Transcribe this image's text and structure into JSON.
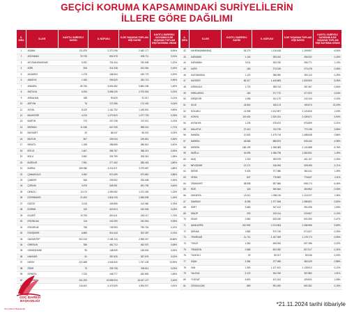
{
  "title": {
    "line1": "GEÇİCİ KORUMA KAPSAMINDAKİ SURİYELİLERİN",
    "line2": "İLLERE GÖRE DAĞILIMI"
  },
  "headers": {
    "no": "S. SIRA",
    "il": "İLLER",
    "kayitli": "KAYITLI SURİYELİ SAYISI",
    "nufus": "İL NÜFUSU",
    "toplam": "İLDE YAŞAYAN TOPLAM KİŞİ SAYISI",
    "oran": "KAYITLI SURİYELİ SAYISININ İLDE YAŞAYAN TOPLAM KİŞİ SAYISINA ORANI"
  },
  "left_rows": [
    [
      "1",
      "ADANA",
      "211.879",
      "2.270.298",
      "2.482.177",
      "8,54%"
    ],
    [
      "2",
      "ADIYAMAN",
      "20.733",
      "604.978",
      "625.711",
      "3,31%"
    ],
    [
      "3",
      "AFYONKARAHİSAR",
      "9.291",
      "751.344",
      "760.635",
      "1,22%"
    ],
    [
      "4",
      "AĞRI",
      "816",
      "511.238",
      "512.054",
      "0,16%"
    ],
    [
      "5",
      "AKSARAY",
      "1.275",
      "438.504",
      "439.779",
      "0,29%"
    ],
    [
      "6",
      "AMASYA",
      "1.184",
      "339.529",
      "340.713",
      "0,35%"
    ],
    [
      "7",
      "ANKARA",
      "80.754",
      "5.803.482",
      "5.884.236",
      "1,46%"
    ],
    [
      "8",
      "ANTALYA",
      "6.294",
      "2.696.249",
      "2.702.543",
      "0,23%"
    ],
    [
      "9",
      "ARDAHAN",
      "188",
      "90.829",
      "91.017",
      "0,21%"
    ],
    [
      "10",
      "ARTVİN",
      "76",
      "172.356",
      "172.432",
      "0,04%"
    ],
    [
      "11",
      "AYDIN",
      "8.129",
      "1.161.702",
      "1.169.831",
      "0,69%"
    ],
    [
      "12",
      "BALIKESİR",
      "4.210",
      "1.273.519",
      "1.277.729",
      "0,33%"
    ],
    [
      "13",
      "BARTIN",
      "273",
      "207.238",
      "207.511",
      "0,13%"
    ],
    [
      "14",
      "BATMAN",
      "11.036",
      "647.205",
      "658.241",
      "1,71%"
    ],
    [
      "15",
      "BAYBURT",
      "29",
      "86.047",
      "86.076",
      "0,03%"
    ],
    [
      "16",
      "BİLECİK",
      "807",
      "226.034",
      "226.841",
      "0,36%"
    ],
    [
      "17",
      "BİNGÖL",
      "1.158",
      "285.655",
      "286.813",
      "0,40%"
    ],
    [
      "18",
      "BİTLİS",
      "1.607",
      "356.767",
      "358.374",
      "0,45%"
    ],
    [
      "19",
      "BOLU",
      "3.552",
      "324.789",
      "328.341",
      "1,08%"
    ],
    [
      "20",
      "BURDUR",
      "7.991",
      "277.452",
      "285.443",
      "2,80%"
    ],
    [
      "21",
      "BURSA",
      "165.086",
      "3.214.571",
      "3.379.657",
      "4,88%"
    ],
    [
      "22",
      "ÇANAKKALE",
      "3.352",
      "570.499",
      "573.851",
      "0,58%"
    ],
    [
      "23",
      "ÇANKIRI",
      "546",
      "205.502",
      "206.048",
      "0,26%"
    ],
    [
      "24",
      "ÇORUM",
      "3.379",
      "528.351",
      "531.730",
      "0,64%"
    ],
    [
      "25",
      "DENİZLİ",
      "13.170",
      "1.059.082",
      "1.072.252",
      "1,23%"
    ],
    [
      "26",
      "DİYARBAKIR",
      "21.402",
      "1.818.133",
      "1.839.535",
      "1,16%"
    ],
    [
      "27",
      "DÜZCE",
      "3.215",
      "409.865",
      "413.080",
      "0,78%"
    ],
    [
      "28",
      "EDİRNE",
      "132",
      "419.913",
      "420.045",
      "0,03%"
    ],
    [
      "29",
      "ELAZIĞ",
      "10.706",
      "604.411",
      "615.117",
      "1,74%"
    ],
    [
      "30",
      "ERZİNCAN",
      "116",
      "242.399",
      "242.515",
      "0,05%"
    ],
    [
      "31",
      "ERZURUM",
      "758",
      "749.993",
      "750.751",
      "0,10%"
    ],
    [
      "32",
      "ESKİŞEHİR",
      "6.869",
      "915.418",
      "922.287",
      "0,74%"
    ],
    [
      "33",
      "GAZİANTEP",
      "402.213",
      "2.164.134",
      "2.566.347",
      "15,68%"
    ],
    [
      "34",
      "GİRESUN",
      "358",
      "461.712",
      "462.070",
      "0,08%"
    ],
    [
      "35",
      "GÜMÜŞHANE",
      "95",
      "148.539",
      "148.634",
      "0,06%"
    ],
    [
      "36",
      "HAKKARİ",
      "51",
      "287.625",
      "287.676",
      "0,02%"
    ],
    [
      "37",
      "HATAY",
      "222.488",
      "1.544.640",
      "1.767.128",
      "12,59%"
    ],
    [
      "38",
      "IĞDIR",
      "73",
      "209.738",
      "209.811",
      "0,03%"
    ],
    [
      "39",
      "ISPARTA",
      "7.023",
      "445.777",
      "452.800",
      "1,55%"
    ],
    [
      "40",
      "İSTANBUL",
      "511.203",
      "15.655.924",
      "16.167.127",
      "3,16%"
    ],
    [
      "41",
      "İZMİR",
      "115.402",
      "4.479.525",
      "4.594.927",
      "2,51%"
    ]
  ],
  "right_rows": [
    [
      "42",
      "KAHRAMANMARAŞ",
      "83.279",
      "1.116.618",
      "1.199.897",
      "6,94%"
    ],
    [
      "43",
      "KARABÜK",
      "1.100",
      "255.242",
      "256.342",
      "0,43%"
    ],
    [
      "44",
      "KARAMAN",
      "3.011",
      "263.760",
      "266.771",
      "1,13%"
    ],
    [
      "45",
      "KARS",
      "163",
      "273.315",
      "273.478",
      "0,06%"
    ],
    [
      "46",
      "KASTAMONU",
      "1.120",
      "388.990",
      "390.110",
      "0,29%"
    ],
    [
      "47",
      "KAYSERİ",
      "80.217",
      "1.445.683",
      "1.525.900",
      "5,26%"
    ],
    [
      "48",
      "KIRIKKALE",
      "1.723",
      "285.744",
      "287.467",
      "0,60%"
    ],
    [
      "49",
      "KIRKLARELİ",
      "150",
      "377.772",
      "377.922",
      "0,04%"
    ],
    [
      "50",
      "KIRŞEHİR",
      "1.065",
      "241.179",
      "242.244",
      "0,44%"
    ],
    [
      "51",
      "KİLİS",
      "44.500",
      "155.174",
      "199.674",
      "22,29%"
    ],
    [
      "52",
      "KOCAELİ",
      "21.908",
      "2.102.907",
      "2.124.815",
      "1,03%"
    ],
    [
      "53",
      "KONYA",
      "119.430",
      "2.320.241",
      "2.439.671",
      "4,90%"
    ],
    [
      "54",
      "KÜTAHYA",
      "1.225",
      "575.674",
      "576.899",
      "0,21%"
    ],
    [
      "55",
      "MALATYA",
      "27.413",
      "742.725",
      "770.138",
      "3,56%"
    ],
    [
      "56",
      "MANİSA",
      "12.832",
      "1.475.716",
      "1.488.548",
      "0,86%"
    ],
    [
      "57",
      "MARDİN",
      "46.566",
      "888.874",
      "935.440",
      "4,98%"
    ],
    [
      "58",
      "MERSİN",
      "186.199",
      "1.938.389",
      "2.124.588",
      "8,76%"
    ],
    [
      "59",
      "MUĞLA",
      "16.095",
      "1.066.736",
      "1.082.831",
      "1,49%"
    ],
    [
      "60",
      "MUŞ",
      "1.218",
      "399.979",
      "401.197",
      "0,30%"
    ],
    [
      "61",
      "NEVŞEHİR",
      "12.171",
      "316.094",
      "328.265",
      "3,71%"
    ],
    [
      "62",
      "NİĞDE",
      "5.325",
      "377.086",
      "382.411",
      "1,39%"
    ],
    [
      "63",
      "ORDU",
      "847",
      "775.800",
      "776.647",
      "0,11%"
    ],
    [
      "64",
      "OSMANİYE",
      "38.508",
      "557.666",
      "596.174",
      "6,46%"
    ],
    [
      "65",
      "RİZE",
      "118",
      "350.844",
      "350.962",
      "0,03%"
    ],
    [
      "66",
      "SAKARYA",
      "15.112",
      "1.098.115",
      "1.113.227",
      "1,36%"
    ],
    [
      "67",
      "SAMSUN",
      "8.255",
      "1.377.546",
      "1.385.801",
      "0,60%"
    ],
    [
      "68",
      "SİİRT",
      "3.683",
      "347.412",
      "351.095",
      "1,05%"
    ],
    [
      "69",
      "SİNOP",
      "293",
      "229.214",
      "229.507",
      "0,13%"
    ],
    [
      "70",
      "SİVAS",
      "2.960",
      "629.430",
      "632.390",
      "0,47%"
    ],
    [
      "71",
      "ŞANLIURFA",
      "242.992",
      "2.213.964",
      "2.456.956",
      "9,89%"
    ],
    [
      "72",
      "ŞIRNAK",
      "1.882",
      "570.745",
      "572.627",
      "0,33%"
    ],
    [
      "73",
      "TEKİRDAĞ",
      "11.714",
      "1.167.059",
      "1.178.773",
      "0,99%"
    ],
    [
      "74",
      "TOKAT",
      "1.352",
      "605.934",
      "607.286",
      "0,22%"
    ],
    [
      "75",
      "TRABZON",
      "2.665",
      "824.352",
      "827.017",
      "0,32%"
    ],
    [
      "76",
      "TUNCELİ",
      "29",
      "89.317",
      "89.346",
      "0,03%"
    ],
    [
      "77",
      "UŞAK",
      "3.364",
      "377.065",
      "380.429",
      "0,88%"
    ],
    [
      "78",
      "VAN",
      "1.300",
      "1.127.612",
      "1.128.912",
      "0,12%"
    ],
    [
      "79",
      "YALOVA",
      "3.122",
      "304.760",
      "307.882",
      "1,01%"
    ],
    [
      "80",
      "YOZGAT",
      "4.600",
      "421.241",
      "425.841",
      "1,08%"
    ],
    [
      "81",
      "ZONGULDAK",
      "869",
      "591.492",
      "592.361",
      "0,15%"
    ]
  ],
  "logo": {
    "line1": "GÖÇ İDARESİ",
    "line2": "BAŞKANLIĞI",
    "sub": "Göç İdaresi Başkanlığı"
  },
  "footnote": "*21.11.2024 tarihi itibariyle",
  "colors": {
    "accent": "#c8102e"
  }
}
